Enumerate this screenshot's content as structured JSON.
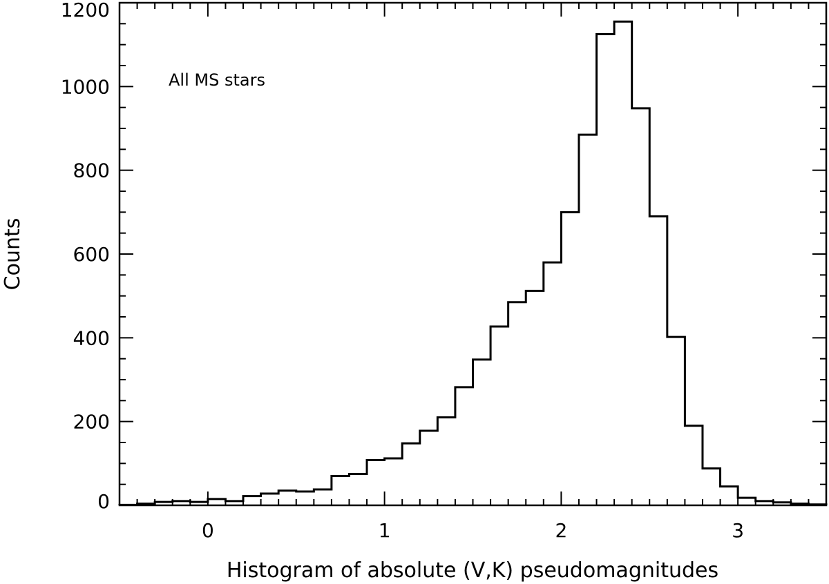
{
  "chart_data": {
    "type": "histogram",
    "title": "",
    "xlabel": "Histogram of absolute (V,K) pseudomagnitudes",
    "ylabel": "Counts",
    "annotation": "All MS stars",
    "xlim": [
      -0.5,
      3.5
    ],
    "ylim": [
      0,
      1200
    ],
    "x_major_ticks": [
      0,
      1,
      2,
      3
    ],
    "x_tick_labels": [
      "0",
      "1",
      "2",
      "3"
    ],
    "y_major_ticks": [
      0,
      200,
      400,
      600,
      800,
      1000,
      1200
    ],
    "y_tick_labels": [
      "0",
      "200",
      "400",
      "600",
      "800",
      "1000",
      "1200"
    ],
    "bin_width": 0.1,
    "bin_edges_start": -0.5,
    "counts": [
      1,
      4,
      8,
      10,
      8,
      15,
      10,
      22,
      28,
      35,
      33,
      38,
      70,
      75,
      108,
      112,
      148,
      178,
      210,
      282,
      348,
      427,
      485,
      512,
      580,
      700,
      885,
      1125,
      1155,
      948,
      690,
      402,
      190,
      88,
      45,
      18,
      10,
      7,
      4,
      2
    ],
    "grid": false,
    "color": "#000000"
  }
}
